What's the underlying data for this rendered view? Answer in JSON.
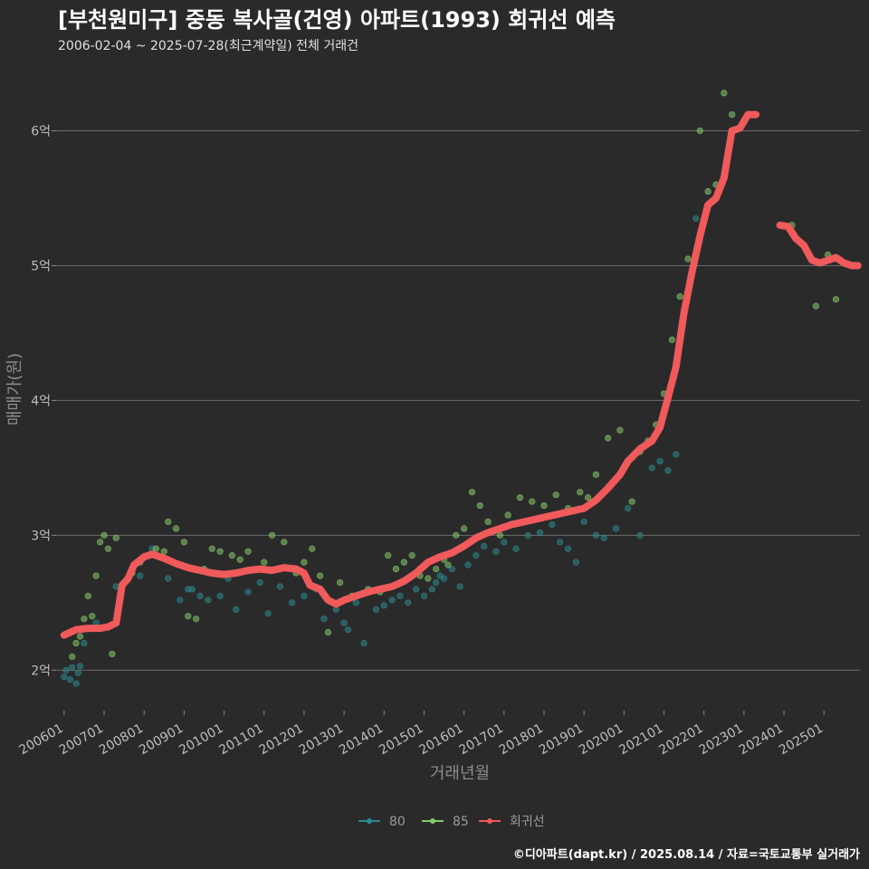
{
  "header": {
    "title": "[부천원미구] 중동 복사골(건영) 아파트(1993) 회귀선 예측",
    "subtitle": "2006-02-04 ~ 2025-07-28(최근계약일) 전체 거래건"
  },
  "footer": {
    "credit": "©디아파트(dapt.kr) / 2025.08.14 / 자료=국토교통부 실거래가"
  },
  "chart_data": {
    "type": "scatter",
    "xlabel": "거래년월",
    "ylabel": "매매가(원)",
    "xlim": [
      2005.8,
      2025.9
    ],
    "ylim": [
      1.7,
      6.5
    ],
    "yticks": [
      {
        "value": 2,
        "label": "2억"
      },
      {
        "value": 3,
        "label": "3억"
      },
      {
        "value": 4,
        "label": "4억"
      },
      {
        "value": 5,
        "label": "5억"
      },
      {
        "value": 6,
        "label": "6억"
      }
    ],
    "xticks": [
      {
        "value": 2006.0,
        "label": "200601"
      },
      {
        "value": 2007.0,
        "label": "200701"
      },
      {
        "value": 2008.0,
        "label": "200801"
      },
      {
        "value": 2009.0,
        "label": "200901"
      },
      {
        "value": 2010.0,
        "label": "201001"
      },
      {
        "value": 2011.0,
        "label": "201101"
      },
      {
        "value": 2012.0,
        "label": "201201"
      },
      {
        "value": 2013.0,
        "label": "201301"
      },
      {
        "value": 2014.0,
        "label": "201401"
      },
      {
        "value": 2015.0,
        "label": "201501"
      },
      {
        "value": 2016.0,
        "label": "201601"
      },
      {
        "value": 2017.0,
        "label": "201701"
      },
      {
        "value": 2018.0,
        "label": "201801"
      },
      {
        "value": 2019.0,
        "label": "201901"
      },
      {
        "value": 2020.0,
        "label": "202001"
      },
      {
        "value": 2021.0,
        "label": "202101"
      },
      {
        "value": 2022.0,
        "label": "202201"
      },
      {
        "value": 2023.0,
        "label": "202301"
      },
      {
        "value": 2024.0,
        "label": "202401"
      },
      {
        "value": 2025.0,
        "label": "202501"
      }
    ],
    "legend": {
      "position": "bottom",
      "items": [
        {
          "name": "80",
          "color": "#2a8a8f"
        },
        {
          "name": "85",
          "color": "#86c96a"
        },
        {
          "name": "회귀선",
          "color": "#f05a5a"
        }
      ]
    },
    "series": [
      {
        "name": "80",
        "color": "#2a8a8f",
        "points": [
          [
            2006.0,
            1.95
          ],
          [
            2006.05,
            2.0
          ],
          [
            2006.15,
            1.93
          ],
          [
            2006.2,
            2.02
          ],
          [
            2006.3,
            1.9
          ],
          [
            2006.35,
            1.98
          ],
          [
            2006.4,
            2.03
          ],
          [
            2006.5,
            2.2
          ],
          [
            2006.8,
            2.35
          ],
          [
            2007.3,
            2.62
          ],
          [
            2007.9,
            2.7
          ],
          [
            2008.2,
            2.9
          ],
          [
            2008.6,
            2.68
          ],
          [
            2008.9,
            2.52
          ],
          [
            2009.1,
            2.6
          ],
          [
            2009.2,
            2.6
          ],
          [
            2009.4,
            2.55
          ],
          [
            2009.6,
            2.52
          ],
          [
            2009.9,
            2.55
          ],
          [
            2010.1,
            2.68
          ],
          [
            2010.3,
            2.45
          ],
          [
            2010.6,
            2.58
          ],
          [
            2010.9,
            2.65
          ],
          [
            2011.1,
            2.42
          ],
          [
            2011.4,
            2.62
          ],
          [
            2011.7,
            2.5
          ],
          [
            2012.0,
            2.55
          ],
          [
            2012.3,
            2.6
          ],
          [
            2012.5,
            2.38
          ],
          [
            2012.8,
            2.45
          ],
          [
            2013.0,
            2.35
          ],
          [
            2013.1,
            2.3
          ],
          [
            2013.3,
            2.5
          ],
          [
            2013.5,
            2.2
          ],
          [
            2013.8,
            2.45
          ],
          [
            2014.0,
            2.48
          ],
          [
            2014.2,
            2.52
          ],
          [
            2014.4,
            2.55
          ],
          [
            2014.6,
            2.5
          ],
          [
            2014.8,
            2.6
          ],
          [
            2015.0,
            2.55
          ],
          [
            2015.2,
            2.6
          ],
          [
            2015.3,
            2.65
          ],
          [
            2015.4,
            2.7
          ],
          [
            2015.5,
            2.68
          ],
          [
            2015.7,
            2.75
          ],
          [
            2015.9,
            2.62
          ],
          [
            2016.1,
            2.78
          ],
          [
            2016.3,
            2.85
          ],
          [
            2016.5,
            2.92
          ],
          [
            2016.8,
            2.88
          ],
          [
            2017.0,
            2.95
          ],
          [
            2017.3,
            2.9
          ],
          [
            2017.6,
            3.0
          ],
          [
            2017.9,
            3.02
          ],
          [
            2018.2,
            3.08
          ],
          [
            2018.4,
            2.95
          ],
          [
            2018.6,
            2.9
          ],
          [
            2018.8,
            2.8
          ],
          [
            2019.0,
            3.1
          ],
          [
            2019.3,
            3.0
          ],
          [
            2019.5,
            2.98
          ],
          [
            2019.8,
            3.05
          ],
          [
            2020.1,
            3.2
          ],
          [
            2020.4,
            3.0
          ],
          [
            2020.7,
            3.5
          ],
          [
            2020.9,
            3.55
          ],
          [
            2021.1,
            3.48
          ],
          [
            2021.3,
            3.6
          ],
          [
            2021.6,
            4.8
          ],
          [
            2021.8,
            5.35
          ]
        ]
      },
      {
        "name": "85",
        "color": "#86c96a",
        "points": [
          [
            2006.2,
            2.1
          ],
          [
            2006.3,
            2.2
          ],
          [
            2006.4,
            2.25
          ],
          [
            2006.5,
            2.38
          ],
          [
            2006.6,
            2.55
          ],
          [
            2006.7,
            2.4
          ],
          [
            2006.8,
            2.7
          ],
          [
            2006.9,
            2.95
          ],
          [
            2007.0,
            3.0
          ],
          [
            2007.1,
            2.9
          ],
          [
            2007.2,
            2.12
          ],
          [
            2007.3,
            2.98
          ],
          [
            2007.5,
            2.65
          ],
          [
            2007.7,
            2.72
          ],
          [
            2007.9,
            2.8
          ],
          [
            2008.1,
            2.85
          ],
          [
            2008.3,
            2.9
          ],
          [
            2008.5,
            2.88
          ],
          [
            2008.6,
            3.1
          ],
          [
            2008.8,
            3.05
          ],
          [
            2009.0,
            2.95
          ],
          [
            2009.1,
            2.4
          ],
          [
            2009.3,
            2.38
          ],
          [
            2009.5,
            2.75
          ],
          [
            2009.7,
            2.9
          ],
          [
            2009.9,
            2.88
          ],
          [
            2010.2,
            2.85
          ],
          [
            2010.4,
            2.82
          ],
          [
            2010.6,
            2.88
          ],
          [
            2010.8,
            2.75
          ],
          [
            2011.0,
            2.8
          ],
          [
            2011.2,
            3.0
          ],
          [
            2011.5,
            2.95
          ],
          [
            2011.8,
            2.72
          ],
          [
            2012.0,
            2.8
          ],
          [
            2012.2,
            2.9
          ],
          [
            2012.4,
            2.7
          ],
          [
            2012.6,
            2.28
          ],
          [
            2012.9,
            2.65
          ],
          [
            2013.2,
            2.55
          ],
          [
            2013.6,
            2.6
          ],
          [
            2013.9,
            2.58
          ],
          [
            2014.1,
            2.85
          ],
          [
            2014.3,
            2.75
          ],
          [
            2014.5,
            2.8
          ],
          [
            2014.7,
            2.85
          ],
          [
            2014.9,
            2.7
          ],
          [
            2015.1,
            2.68
          ],
          [
            2015.3,
            2.75
          ],
          [
            2015.5,
            2.82
          ],
          [
            2015.6,
            2.78
          ],
          [
            2015.8,
            3.0
          ],
          [
            2016.0,
            3.05
          ],
          [
            2016.2,
            3.32
          ],
          [
            2016.4,
            3.22
          ],
          [
            2016.6,
            3.1
          ],
          [
            2016.9,
            3.0
          ],
          [
            2017.1,
            3.15
          ],
          [
            2017.4,
            3.28
          ],
          [
            2017.7,
            3.25
          ],
          [
            2018.0,
            3.22
          ],
          [
            2018.3,
            3.3
          ],
          [
            2018.6,
            3.2
          ],
          [
            2018.9,
            3.32
          ],
          [
            2019.1,
            3.28
          ],
          [
            2019.3,
            3.45
          ],
          [
            2019.6,
            3.72
          ],
          [
            2019.9,
            3.78
          ],
          [
            2020.2,
            3.25
          ],
          [
            2020.4,
            3.62
          ],
          [
            2020.6,
            3.7
          ],
          [
            2020.8,
            3.82
          ],
          [
            2021.0,
            4.05
          ],
          [
            2021.2,
            4.45
          ],
          [
            2021.4,
            4.77
          ],
          [
            2021.6,
            5.05
          ],
          [
            2021.9,
            6.0
          ],
          [
            2022.1,
            5.55
          ],
          [
            2022.3,
            5.6
          ],
          [
            2022.5,
            6.28
          ],
          [
            2022.7,
            6.12
          ],
          [
            2024.2,
            5.3
          ],
          [
            2024.8,
            4.7
          ],
          [
            2025.3,
            4.75
          ],
          [
            2025.1,
            5.08
          ]
        ]
      }
    ],
    "regression": {
      "name": "회귀선",
      "color": "#f05a5a",
      "points": [
        [
          2006.0,
          2.26
        ],
        [
          2006.3,
          2.3
        ],
        [
          2006.6,
          2.31
        ],
        [
          2006.9,
          2.31
        ],
        [
          2007.1,
          2.32
        ],
        [
          2007.3,
          2.35
        ],
        [
          2007.45,
          2.63
        ],
        [
          2007.6,
          2.68
        ],
        [
          2007.75,
          2.78
        ],
        [
          2008.0,
          2.84
        ],
        [
          2008.2,
          2.86
        ],
        [
          2008.5,
          2.83
        ],
        [
          2008.8,
          2.79
        ],
        [
          2009.1,
          2.76
        ],
        [
          2009.4,
          2.74
        ],
        [
          2009.7,
          2.72
        ],
        [
          2010.0,
          2.71
        ],
        [
          2010.3,
          2.72
        ],
        [
          2010.6,
          2.74
        ],
        [
          2010.9,
          2.75
        ],
        [
          2011.2,
          2.74
        ],
        [
          2011.5,
          2.76
        ],
        [
          2011.8,
          2.75
        ],
        [
          2012.0,
          2.72
        ],
        [
          2012.15,
          2.63
        ],
        [
          2012.4,
          2.6
        ],
        [
          2012.6,
          2.52
        ],
        [
          2012.8,
          2.49
        ],
        [
          2013.0,
          2.52
        ],
        [
          2013.3,
          2.55
        ],
        [
          2013.6,
          2.58
        ],
        [
          2013.9,
          2.6
        ],
        [
          2014.2,
          2.62
        ],
        [
          2014.5,
          2.66
        ],
        [
          2014.8,
          2.72
        ],
        [
          2015.1,
          2.8
        ],
        [
          2015.4,
          2.84
        ],
        [
          2015.7,
          2.87
        ],
        [
          2016.0,
          2.92
        ],
        [
          2016.3,
          2.98
        ],
        [
          2016.6,
          3.02
        ],
        [
          2016.9,
          3.05
        ],
        [
          2017.2,
          3.08
        ],
        [
          2017.5,
          3.1
        ],
        [
          2017.8,
          3.12
        ],
        [
          2018.1,
          3.14
        ],
        [
          2018.4,
          3.16
        ],
        [
          2018.7,
          3.18
        ],
        [
          2019.0,
          3.2
        ],
        [
          2019.3,
          3.26
        ],
        [
          2019.6,
          3.35
        ],
        [
          2019.9,
          3.45
        ],
        [
          2020.1,
          3.55
        ],
        [
          2020.4,
          3.64
        ],
        [
          2020.7,
          3.7
        ],
        [
          2020.9,
          3.8
        ],
        [
          2021.1,
          4.02
        ],
        [
          2021.3,
          4.25
        ],
        [
          2021.5,
          4.65
        ],
        [
          2021.7,
          4.95
        ],
        [
          2021.9,
          5.22
        ],
        [
          2022.1,
          5.45
        ],
        [
          2022.3,
          5.5
        ],
        [
          2022.5,
          5.65
        ],
        [
          2022.7,
          6.0
        ],
        [
          2022.9,
          6.02
        ],
        [
          2023.1,
          6.12
        ],
        [
          2023.3,
          6.12
        ]
      ],
      "points_segment2": [
        [
          2023.9,
          5.3
        ],
        [
          2024.1,
          5.29
        ],
        [
          2024.3,
          5.2
        ],
        [
          2024.5,
          5.15
        ],
        [
          2024.7,
          5.04
        ],
        [
          2024.9,
          5.02
        ],
        [
          2025.1,
          5.04
        ],
        [
          2025.3,
          5.06
        ],
        [
          2025.5,
          5.02
        ],
        [
          2025.7,
          5.0
        ],
        [
          2025.85,
          5.0
        ]
      ]
    }
  }
}
